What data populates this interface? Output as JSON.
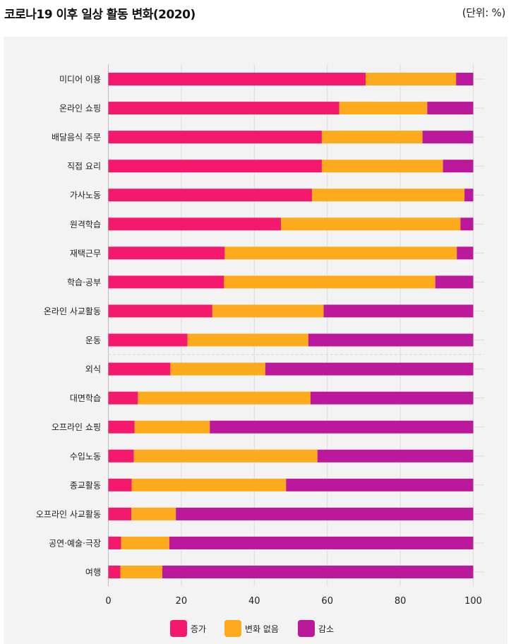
{
  "header": {
    "title": "코로나19 이후 일상 활동 변화(2020)",
    "unit": "(단위: %)"
  },
  "colors": {
    "increase": "#F5196E",
    "no_change": "#FDAB1D",
    "decrease": "#BB189C",
    "panel": "#f3f3f3",
    "grid": "#dcdcdc"
  },
  "chart_data": {
    "type": "bar",
    "orientation": "horizontal",
    "stacked": true,
    "title": "코로나19 이후 일상 활동 변화(2020)",
    "xlabel": "",
    "ylabel": "",
    "unit": "%",
    "xlim": [
      0,
      100
    ],
    "xticks": [
      0,
      20,
      40,
      60,
      80,
      100
    ],
    "grid": true,
    "legend_position": "bottom",
    "categories": [
      "미디어 이용",
      "온라인 쇼핑",
      "배달음식 주문",
      "직접 요리",
      "가사노동",
      "원격학습",
      "재택근무",
      "학습·공부",
      "온라인 사교활동",
      "운동",
      "외식",
      "대면학습",
      "오프라인 쇼핑",
      "수입노동",
      "종교활동",
      "오프라인 사교활동",
      "공연·예술·극장",
      "여행"
    ],
    "series": [
      {
        "name": "증가",
        "color": "#F5196E",
        "values": [
          70.5,
          63.3,
          58.5,
          58.5,
          55.8,
          47.3,
          31.9,
          31.7,
          28.5,
          21.7,
          17.0,
          8.1,
          7.2,
          7.0,
          6.4,
          6.3,
          3.5,
          3.3
        ]
      },
      {
        "name": "변화 없음",
        "color": "#FDAB1D",
        "values": [
          24.8,
          24.1,
          27.6,
          33.2,
          41.8,
          49.2,
          63.6,
          57.9,
          30.5,
          33.1,
          26.0,
          47.3,
          20.6,
          50.3,
          42.3,
          12.2,
          13.2,
          11.5
        ]
      },
      {
        "name": "감소",
        "color": "#BB189C",
        "values": [
          4.7,
          12.6,
          13.9,
          8.3,
          2.4,
          3.5,
          4.5,
          10.4,
          41.0,
          45.2,
          57.0,
          44.6,
          72.2,
          42.7,
          51.3,
          81.5,
          83.3,
          85.2
        ]
      }
    ],
    "separator_after_category": "운동"
  }
}
